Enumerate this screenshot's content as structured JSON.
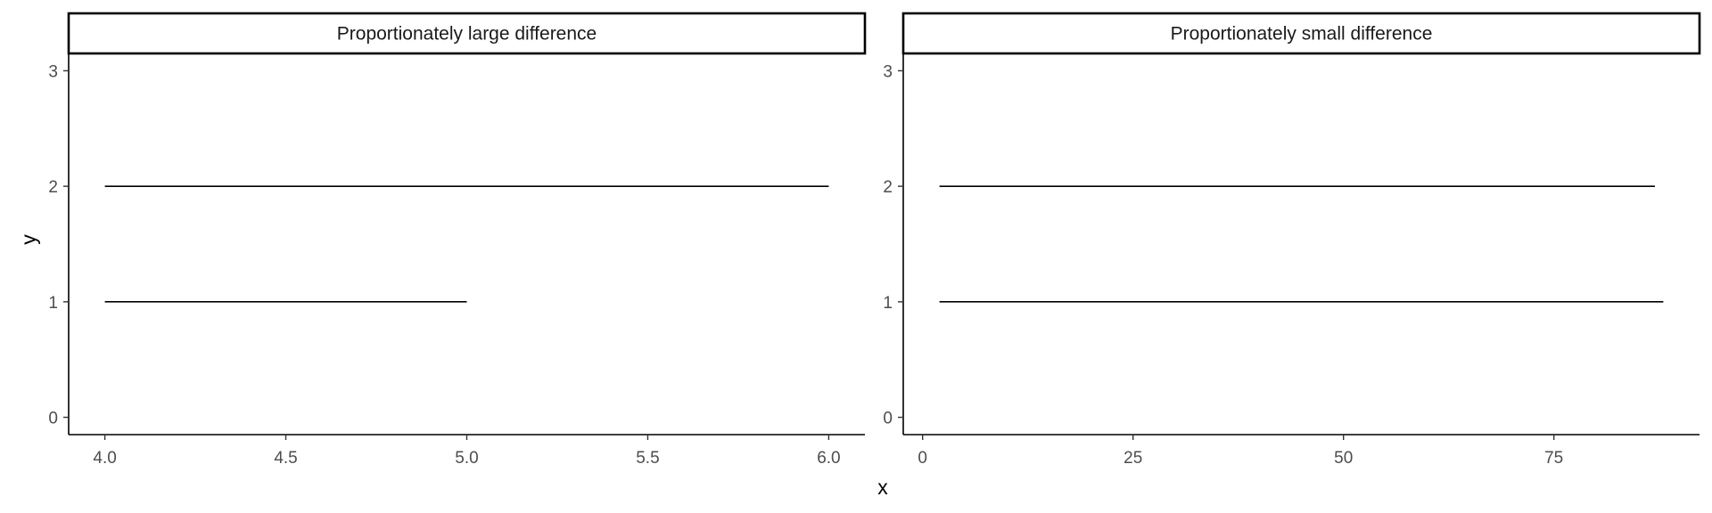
{
  "chart_data": {
    "type": "line",
    "xlabel": "x",
    "ylabel": "y",
    "grid": false,
    "panels": [
      {
        "title": "Proportionately large difference",
        "xlim": [
          3.9,
          6.1
        ],
        "xticks": [
          4.0,
          4.5,
          5.0,
          5.5,
          6.0
        ],
        "xtick_labels": [
          "4.0",
          "4.5",
          "5.0",
          "5.5",
          "6.0"
        ],
        "ylim": [
          -0.15,
          3.15
        ],
        "yticks": [
          0,
          1,
          2,
          3
        ],
        "ytick_labels": [
          "0",
          "1",
          "2",
          "3"
        ],
        "segments": [
          {
            "x": [
              4.0,
              5.0
            ],
            "y": 1
          },
          {
            "x": [
              4.0,
              6.0
            ],
            "y": 2
          }
        ]
      },
      {
        "title": "Proportionately small difference",
        "xlim": [
          -2.3,
          92.3
        ],
        "xticks": [
          0,
          25,
          50,
          75
        ],
        "xtick_labels": [
          "0",
          "25",
          "50",
          "75"
        ],
        "ylim": [
          -0.15,
          3.15
        ],
        "yticks": [
          0,
          1,
          2,
          3
        ],
        "ytick_labels": [
          "0",
          "1",
          "2",
          "3"
        ],
        "segments": [
          {
            "x": [
              2,
              88
            ],
            "y": 1
          },
          {
            "x": [
              2,
              87
            ],
            "y": 2
          }
        ]
      }
    ]
  }
}
